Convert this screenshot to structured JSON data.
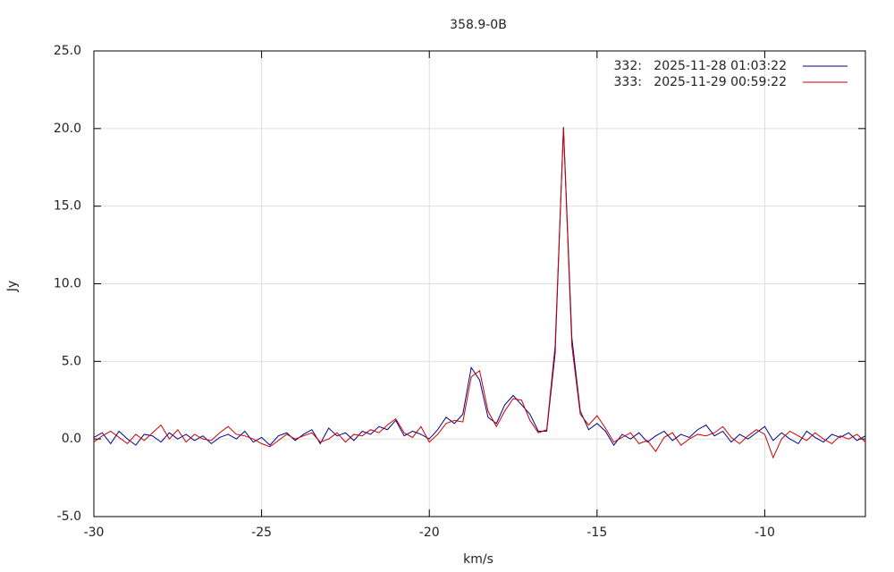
{
  "chart_data": {
    "type": "line",
    "title": "358.9-0B",
    "x_label": "km/s",
    "y_label": "Jy",
    "x": [
      -30,
      -29.75,
      -29.5,
      -29.25,
      -29,
      -28.75,
      -28.5,
      -28.25,
      -28,
      -27.75,
      -27.5,
      -27.25,
      -27,
      -26.75,
      -26.5,
      -26.25,
      -26,
      -25.75,
      -25.5,
      -25.25,
      -25,
      -24.75,
      -24.5,
      -24.25,
      -24,
      -23.75,
      -23.5,
      -23.25,
      -23,
      -22.75,
      -22.5,
      -22.25,
      -22,
      -21.75,
      -21.5,
      -21.25,
      -21,
      -20.75,
      -20.5,
      -20.25,
      -20,
      -19.75,
      -19.5,
      -19.25,
      -19,
      -18.75,
      -18.5,
      -18.25,
      -18,
      -17.75,
      -17.5,
      -17.25,
      -17,
      -16.75,
      -16.5,
      -16.25,
      -16,
      -15.75,
      -15.5,
      -15.25,
      -15,
      -14.75,
      -14.5,
      -14.25,
      -14,
      -13.75,
      -13.5,
      -13.25,
      -13,
      -12.75,
      -12.5,
      -12.25,
      -12,
      -11.75,
      -11.5,
      -11.25,
      -11,
      -10.75,
      -10.5,
      -10.25,
      -10,
      -9.75,
      -9.5,
      -9.25,
      -9,
      -8.75,
      -8.5,
      -8.25,
      -8,
      -7.75,
      -7.5,
      -7.25,
      -7
    ],
    "series": [
      {
        "name": "332:   2025-11-28 01:03:22",
        "color": "#00008b",
        "values": [
          0.1,
          0.4,
          -0.3,
          0.5,
          0.0,
          -0.4,
          0.3,
          0.2,
          -0.2,
          0.4,
          0.0,
          0.3,
          -0.1,
          0.2,
          -0.3,
          0.1,
          0.3,
          0.0,
          0.5,
          -0.2,
          0.1,
          -0.4,
          0.2,
          0.4,
          -0.1,
          0.3,
          0.6,
          -0.3,
          0.7,
          0.2,
          0.4,
          -0.1,
          0.5,
          0.3,
          0.8,
          0.6,
          1.2,
          0.2,
          0.5,
          0.3,
          0.0,
          0.6,
          1.4,
          1.0,
          1.6,
          4.6,
          3.8,
          1.4,
          1.0,
          2.2,
          2.8,
          2.2,
          1.6,
          0.5,
          0.5,
          5.5,
          20.1,
          6.5,
          1.8,
          0.6,
          1.0,
          0.5,
          -0.4,
          0.3,
          0.0,
          0.4,
          -0.2,
          0.2,
          0.5,
          -0.1,
          0.3,
          0.1,
          0.6,
          0.9,
          0.2,
          0.5,
          -0.2,
          0.3,
          0.0,
          0.4,
          0.8,
          -0.1,
          0.4,
          0.0,
          -0.3,
          0.5,
          0.1,
          -0.2,
          0.3,
          0.1,
          0.4,
          -0.1,
          0.2
        ]
      },
      {
        "name": "333:   2025-11-29 00:59:22",
        "color": "#cc0000",
        "values": [
          -0.2,
          0.2,
          0.5,
          0.1,
          -0.3,
          0.3,
          -0.1,
          0.4,
          0.9,
          0.0,
          0.6,
          -0.2,
          0.3,
          0.0,
          -0.1,
          0.4,
          0.8,
          0.3,
          0.2,
          0.0,
          -0.3,
          -0.5,
          -0.1,
          0.3,
          0.0,
          0.2,
          0.4,
          -0.2,
          0.0,
          0.4,
          -0.2,
          0.3,
          0.2,
          0.6,
          0.4,
          0.9,
          1.3,
          0.4,
          0.1,
          0.8,
          -0.2,
          0.3,
          1.0,
          1.2,
          1.1,
          4.0,
          4.4,
          1.8,
          0.8,
          1.8,
          2.6,
          2.5,
          1.2,
          0.4,
          0.6,
          6.0,
          20.0,
          6.0,
          1.6,
          0.9,
          1.5,
          0.7,
          -0.2,
          0.1,
          0.4,
          -0.3,
          -0.1,
          -0.8,
          0.1,
          0.4,
          -0.4,
          0.0,
          0.3,
          0.2,
          0.4,
          0.8,
          0.1,
          -0.3,
          0.2,
          0.6,
          0.3,
          -1.2,
          0.0,
          0.5,
          0.2,
          -0.1,
          0.4,
          0.0,
          -0.3,
          0.2,
          0.0,
          0.3,
          -0.2
        ]
      }
    ],
    "xlim": [
      -30,
      -7
    ],
    "ylim": [
      -5,
      25
    ],
    "xticks": [
      -30,
      -25,
      -20,
      -15,
      -10
    ],
    "yticks": [
      {
        "value": -5,
        "label": "-5.0"
      },
      {
        "value": 0,
        "label": "0.0"
      },
      {
        "value": 5,
        "label": "5.0"
      },
      {
        "value": 10,
        "label": "10.0"
      },
      {
        "value": 15,
        "label": "15.0"
      },
      {
        "value": 20,
        "label": "20.0"
      },
      {
        "value": 25,
        "label": "25.0"
      }
    ],
    "grid": true,
    "legend": "upper-right"
  }
}
